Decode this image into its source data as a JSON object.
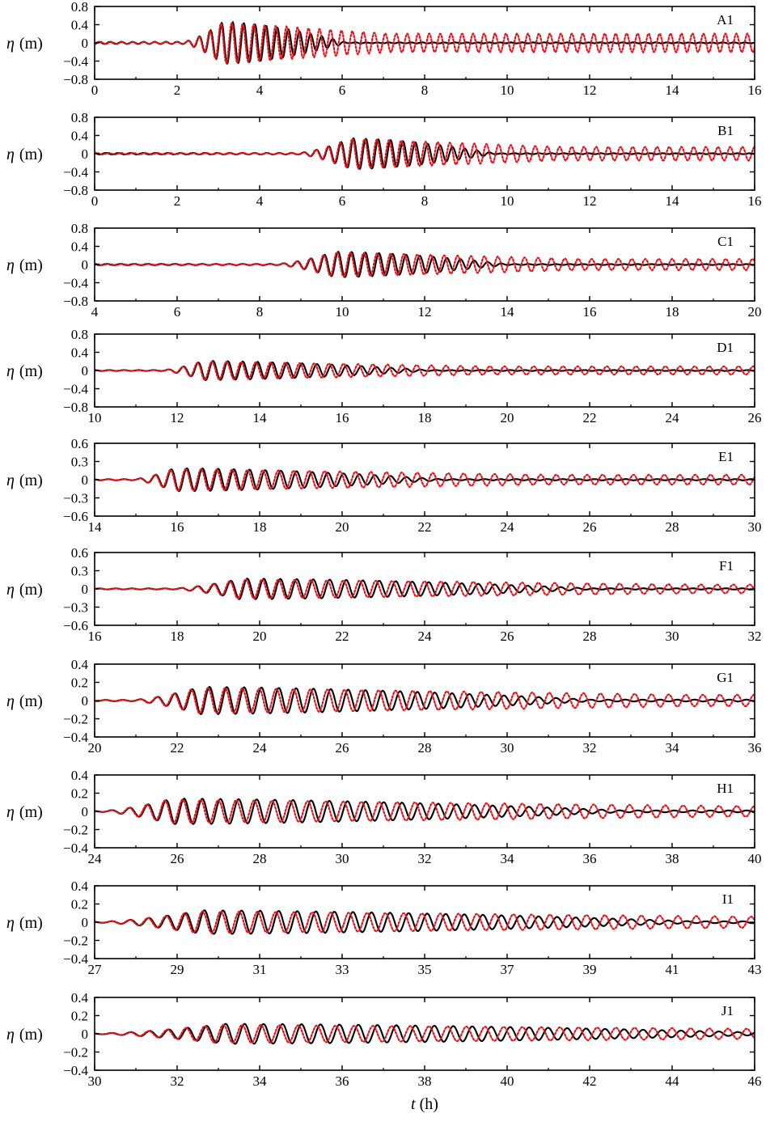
{
  "chart_data": [
    {
      "type": "line",
      "label": "A1",
      "xlabel": "",
      "ylabel": "η (m)",
      "xlim": [
        0,
        16
      ],
      "ylim": [
        -0.8,
        0.8
      ],
      "xticks": [
        "0",
        "2",
        "4",
        "6",
        "8",
        "10",
        "12",
        "14",
        "16"
      ],
      "yticks": [
        "−0.8",
        "−0.4",
        "0",
        "0.4",
        "0.8"
      ],
      "peak_amp": 0.45,
      "t_onset": 2.2,
      "t_peak": 3.1,
      "period": 0.27,
      "dur_black": 3.0,
      "dur_red": 4.0,
      "t_end": 16,
      "series": [
        {
          "role": "black",
          "color": "#000000",
          "style": "solid"
        },
        {
          "role": "red",
          "color": "#e8141c",
          "style": "dotted"
        }
      ]
    },
    {
      "type": "line",
      "label": "B1",
      "xlabel": "",
      "ylabel": "η (m)",
      "xlim": [
        0,
        16
      ],
      "ylim": [
        -0.8,
        0.8
      ],
      "xticks": [
        "0",
        "2",
        "4",
        "6",
        "8",
        "10",
        "12",
        "14",
        "16"
      ],
      "yticks": [
        "−0.8",
        "−0.4",
        "0",
        "0.4",
        "0.8"
      ],
      "peak_amp": 0.33,
      "t_onset": 5.0,
      "t_peak": 6.2,
      "period": 0.3,
      "dur_black": 3.5,
      "dur_red": 5.0,
      "t_end": 16,
      "series": [
        {
          "role": "black",
          "color": "#000000",
          "style": "solid"
        },
        {
          "role": "red",
          "color": "#e8141c",
          "style": "dotted"
        }
      ]
    },
    {
      "type": "line",
      "label": "C1",
      "xlabel": "",
      "ylabel": "η (m)",
      "xlim": [
        4,
        20
      ],
      "ylim": [
        -0.8,
        0.8
      ],
      "xticks": [
        "4",
        "6",
        "8",
        "10",
        "12",
        "14",
        "16",
        "18",
        "20"
      ],
      "yticks": [
        "−0.8",
        "−0.4",
        "0",
        "0.4",
        "0.8"
      ],
      "peak_amp": 0.27,
      "t_onset": 8.5,
      "t_peak": 9.8,
      "period": 0.33,
      "dur_black": 4.2,
      "dur_red": 6.0,
      "t_end": 20,
      "series": [
        {
          "role": "black",
          "color": "#000000",
          "style": "solid"
        },
        {
          "role": "red",
          "color": "#e8141c",
          "style": "dotted"
        }
      ]
    },
    {
      "type": "line",
      "label": "D1",
      "xlabel": "",
      "ylabel": "η (m)",
      "xlim": [
        10,
        26
      ],
      "ylim": [
        -0.8,
        0.8
      ],
      "xticks": [
        "10",
        "12",
        "14",
        "16",
        "18",
        "20",
        "22",
        "24",
        "26"
      ],
      "yticks": [
        "−0.8",
        "−0.4",
        "0",
        "0.4",
        "0.8"
      ],
      "peak_amp": 0.2,
      "t_onset": 11.7,
      "t_peak": 12.6,
      "period": 0.36,
      "dur_black": 5.5,
      "dur_red": 7.0,
      "t_end": 26,
      "series": [
        {
          "role": "black",
          "color": "#000000",
          "style": "solid"
        },
        {
          "role": "red",
          "color": "#e8141c",
          "style": "dotted"
        }
      ]
    },
    {
      "type": "line",
      "label": "E1",
      "xlabel": "",
      "ylabel": "η (m)",
      "xlim": [
        14,
        30
      ],
      "ylim": [
        -0.6,
        0.6
      ],
      "xticks": [
        "14",
        "16",
        "18",
        "20",
        "22",
        "24",
        "26",
        "28",
        "30"
      ],
      "yticks": [
        "−0.6",
        "−0.3",
        "0",
        "0.3",
        "0.6"
      ],
      "peak_amp": 0.18,
      "t_onset": 15.0,
      "t_peak": 15.9,
      "period": 0.38,
      "dur_black": 6.5,
      "dur_red": 9.0,
      "t_end": 30,
      "series": [
        {
          "role": "black",
          "color": "#000000",
          "style": "solid"
        },
        {
          "role": "red",
          "color": "#e8141c",
          "style": "dotted"
        }
      ]
    },
    {
      "type": "line",
      "label": "F1",
      "xlabel": "",
      "ylabel": "η (m)",
      "xlim": [
        16,
        32
      ],
      "ylim": [
        -0.6,
        0.6
      ],
      "xticks": [
        "16",
        "18",
        "20",
        "22",
        "24",
        "26",
        "28",
        "30",
        "32"
      ],
      "yticks": [
        "−0.6",
        "−0.3",
        "0",
        "0.3",
        "0.6"
      ],
      "peak_amp": 0.16,
      "t_onset": 18.0,
      "t_peak": 19.5,
      "period": 0.4,
      "dur_black": 8.5,
      "dur_red": 11.0,
      "t_end": 32,
      "series": [
        {
          "role": "black",
          "color": "#000000",
          "style": "solid"
        },
        {
          "role": "red",
          "color": "#e8141c",
          "style": "dotted"
        }
      ]
    },
    {
      "type": "line",
      "label": "G1",
      "xlabel": "",
      "ylabel": "η (m)",
      "xlim": [
        20,
        36
      ],
      "ylim": [
        -0.4,
        0.4
      ],
      "xticks": [
        "20",
        "22",
        "24",
        "26",
        "28",
        "30",
        "32",
        "34",
        "36"
      ],
      "yticks": [
        "−0.4",
        "−0.2",
        "0",
        "0.2",
        "0.4"
      ],
      "peak_amp": 0.14,
      "t_onset": 21.0,
      "t_peak": 22.5,
      "period": 0.42,
      "dur_black": 9.5,
      "dur_red": 12.0,
      "t_end": 36,
      "series": [
        {
          "role": "black",
          "color": "#000000",
          "style": "solid"
        },
        {
          "role": "red",
          "color": "#e8141c",
          "style": "dotted"
        }
      ]
    },
    {
      "type": "line",
      "label": "H1",
      "xlabel": "",
      "ylabel": "η (m)",
      "xlim": [
        24,
        40
      ],
      "ylim": [
        -0.4,
        0.4
      ],
      "xticks": [
        "24",
        "26",
        "28",
        "30",
        "32",
        "34",
        "36",
        "38",
        "40"
      ],
      "yticks": [
        "−0.4",
        "−0.2",
        "0",
        "0.2",
        "0.4"
      ],
      "peak_amp": 0.13,
      "t_onset": 24.3,
      "t_peak": 25.8,
      "period": 0.44,
      "dur_black": 11.0,
      "dur_red": 13.5,
      "t_end": 40,
      "series": [
        {
          "role": "black",
          "color": "#000000",
          "style": "solid"
        },
        {
          "role": "red",
          "color": "#e8141c",
          "style": "dotted"
        }
      ]
    },
    {
      "type": "line",
      "label": "I1",
      "xlabel": "",
      "ylabel": "η (m)",
      "xlim": [
        27,
        43
      ],
      "ylim": [
        -0.4,
        0.4
      ],
      "xticks": [
        "27",
        "29",
        "31",
        "33",
        "35",
        "37",
        "39",
        "41",
        "43"
      ],
      "yticks": [
        "−0.4",
        "−0.2",
        "0",
        "0.2",
        "0.4"
      ],
      "peak_amp": 0.12,
      "t_onset": 27.3,
      "t_peak": 29.5,
      "period": 0.45,
      "dur_black": 12.0,
      "dur_red": 15.0,
      "t_end": 43,
      "series": [
        {
          "role": "black",
          "color": "#000000",
          "style": "solid"
        },
        {
          "role": "red",
          "color": "#e8141c",
          "style": "dotted"
        }
      ]
    },
    {
      "type": "line",
      "label": "J1",
      "xlabel": "t (h)",
      "ylabel": "η (m)",
      "xlim": [
        30,
        46
      ],
      "ylim": [
        -0.4,
        0.4
      ],
      "xticks": [
        "30",
        "32",
        "34",
        "36",
        "38",
        "40",
        "42",
        "44",
        "46"
      ],
      "yticks": [
        "−0.4",
        "−0.2",
        "0",
        "0.2",
        "0.4"
      ],
      "peak_amp": 0.1,
      "t_onset": 30.3,
      "t_peak": 33.0,
      "period": 0.46,
      "dur_black": 13.5,
      "dur_red": 16.0,
      "t_end": 46,
      "series": [
        {
          "role": "black",
          "color": "#000000",
          "style": "solid"
        },
        {
          "role": "red",
          "color": "#e8141c",
          "style": "dotted"
        }
      ]
    }
  ]
}
